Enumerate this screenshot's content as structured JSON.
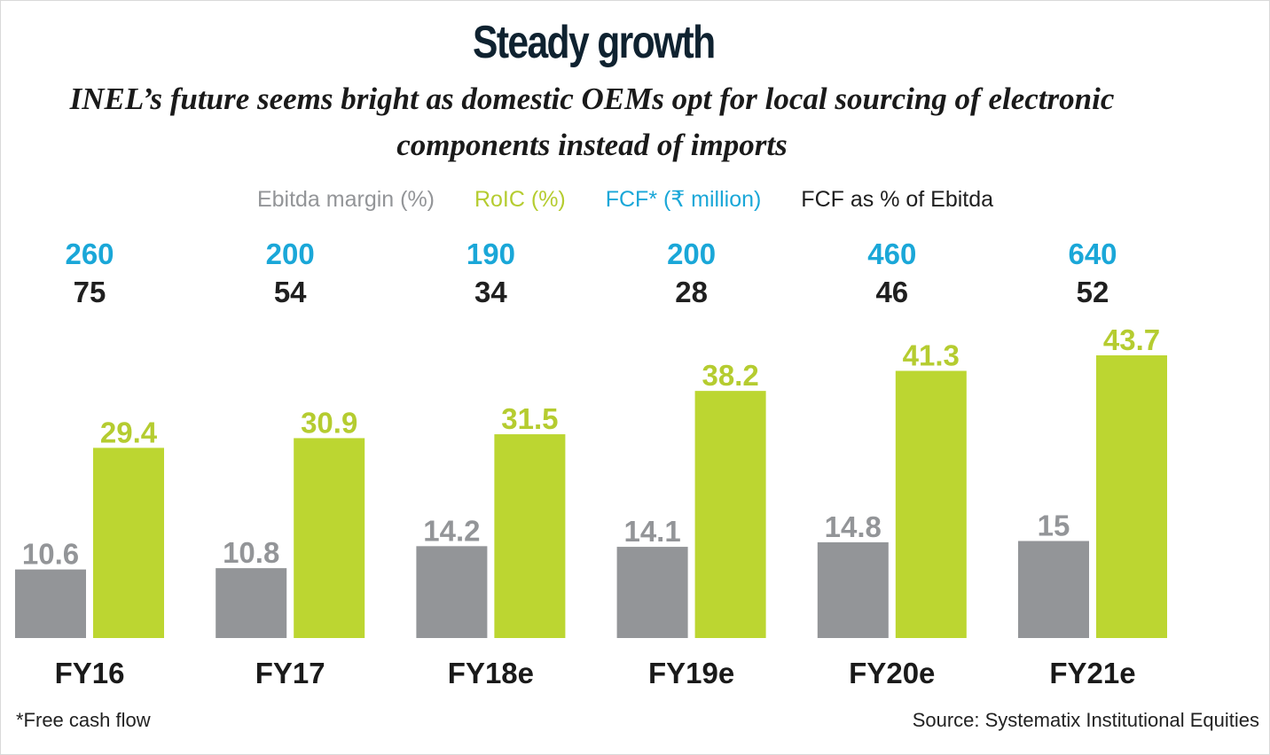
{
  "title": "Steady growth",
  "subtitle": "INEL’s future seems bright as domestic OEMs opt for local sourcing of electronic components instead of imports",
  "legend": {
    "ebitda": "Ebitda margin (%)",
    "roic": "RoIC (%)",
    "fcf": "FCF* (₹ million)",
    "fcf_pct": "FCF as % of Ebitda"
  },
  "colors": {
    "ebitda": "#939598",
    "roic": "#bcd631",
    "roic_label": "#b5cc30",
    "fcf": "#1aa7d8",
    "fcf_pct": "#1f1f1f"
  },
  "chart_data": {
    "type": "bar",
    "categories": [
      "FY16",
      "FY17",
      "FY18e",
      "FY19e",
      "FY20e",
      "FY21e"
    ],
    "series": [
      {
        "name": "Ebitda margin (%)",
        "values": [
          "10.6",
          "10.8",
          "14.2",
          "14.1",
          "14.8",
          "15"
        ]
      },
      {
        "name": "RoIC (%)",
        "values": [
          "29.4",
          "30.9",
          "31.5",
          "38.2",
          "41.3",
          "43.7"
        ]
      }
    ],
    "annotations": {
      "fcf": [
        "260",
        "200",
        "190",
        "200",
        "460",
        "640"
      ],
      "fcf_pct_of_ebitda": [
        "75",
        "54",
        "34",
        "28",
        "46",
        "52"
      ]
    },
    "grid": false
  },
  "footnote": "*Free cash flow",
  "source": "Source: Systematix Institutional Equities"
}
